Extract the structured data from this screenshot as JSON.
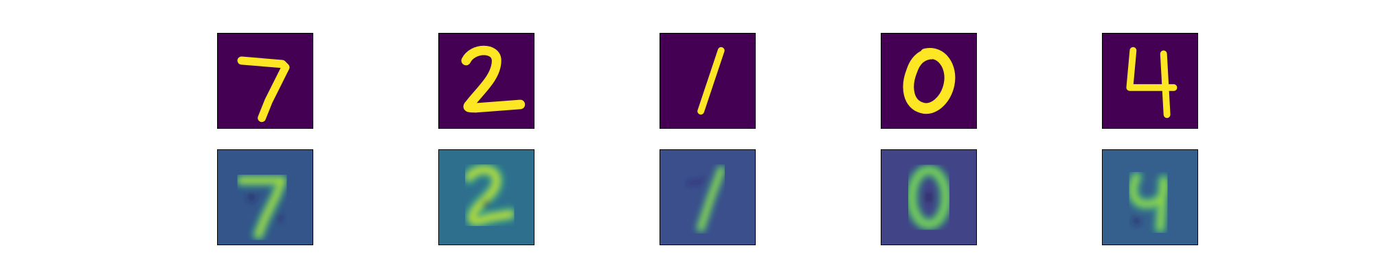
{
  "figure": {
    "columns": [
      {
        "digit": "7",
        "recon_bg": "#33558a"
      },
      {
        "digit": "2",
        "recon_bg": "#2e6f8e"
      },
      {
        "digit": "1",
        "recon_bg": "#3b4f8c"
      },
      {
        "digit": "0",
        "recon_bg": "#414487"
      },
      {
        "digit": "4",
        "recon_bg": "#355f8d"
      }
    ],
    "colors": {
      "original_bg": "#440154",
      "original_stroke": "#fde725",
      "recon_glow": "#35b779",
      "recon_stroke": "#7ad151",
      "recon_dark": "#2a1a5e"
    }
  }
}
